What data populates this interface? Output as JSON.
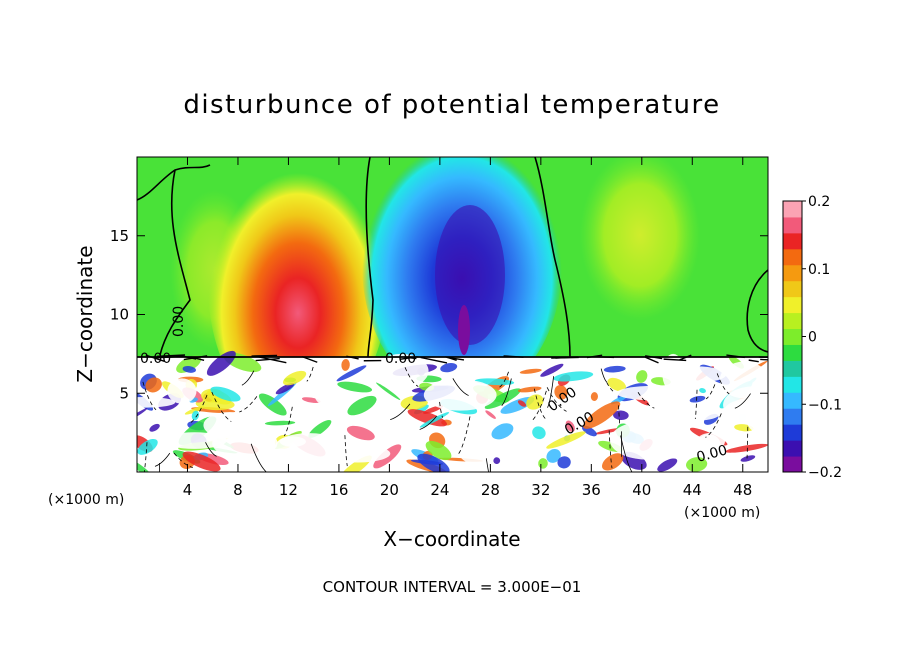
{
  "chart_data": {
    "type": "heatmap",
    "title": "disturbunce of potential temperature",
    "xlabel": "X−coordinate",
    "ylabel": "Z−coordinate",
    "x_unit_left": "(×1000 m)",
    "x_unit_right": "(×1000 m)",
    "footer": "CONTOUR INTERVAL = 3.000E−01",
    "xlim": [
      0,
      50
    ],
    "ylim": [
      0,
      20
    ],
    "x_ticks": [
      "4",
      "8",
      "12",
      "16",
      "20",
      "24",
      "28",
      "32",
      "36",
      "40",
      "44",
      "48"
    ],
    "y_ticks": [
      "5",
      "10",
      "15"
    ],
    "colorbar": {
      "range": [
        -0.2,
        0.2
      ],
      "labels": [
        "0.2",
        "0.1",
        "0",
        "−0.1",
        "−0.2"
      ],
      "colors": [
        "#7a0d9e",
        "#3b0fb0",
        "#1e3bd8",
        "#2f7cf0",
        "#35b9ff",
        "#22e6e6",
        "#20c8a0",
        "#2ddc40",
        "#7ded2b",
        "#b8f020",
        "#f0f02a",
        "#f0c818",
        "#f59a10",
        "#f36a10",
        "#ea2424",
        "#f25a7a",
        "#fba3b4"
      ]
    },
    "contour_labels": [
      "0.00",
      "0.00",
      "0.00",
      "0.00",
      "0.00",
      "0.00"
    ],
    "anomalies": [
      {
        "name": "warm-anomaly",
        "x_center": 13,
        "z_center": 11,
        "value": 0.18
      },
      {
        "name": "cold-anomaly",
        "x_center": 26,
        "z_center": 13,
        "value": -0.18
      },
      {
        "name": "weak-warm-anomaly",
        "x_center": 40,
        "z_center": 14,
        "value": 0.08
      }
    ],
    "boundary_layer_top_z": 7.5
  }
}
